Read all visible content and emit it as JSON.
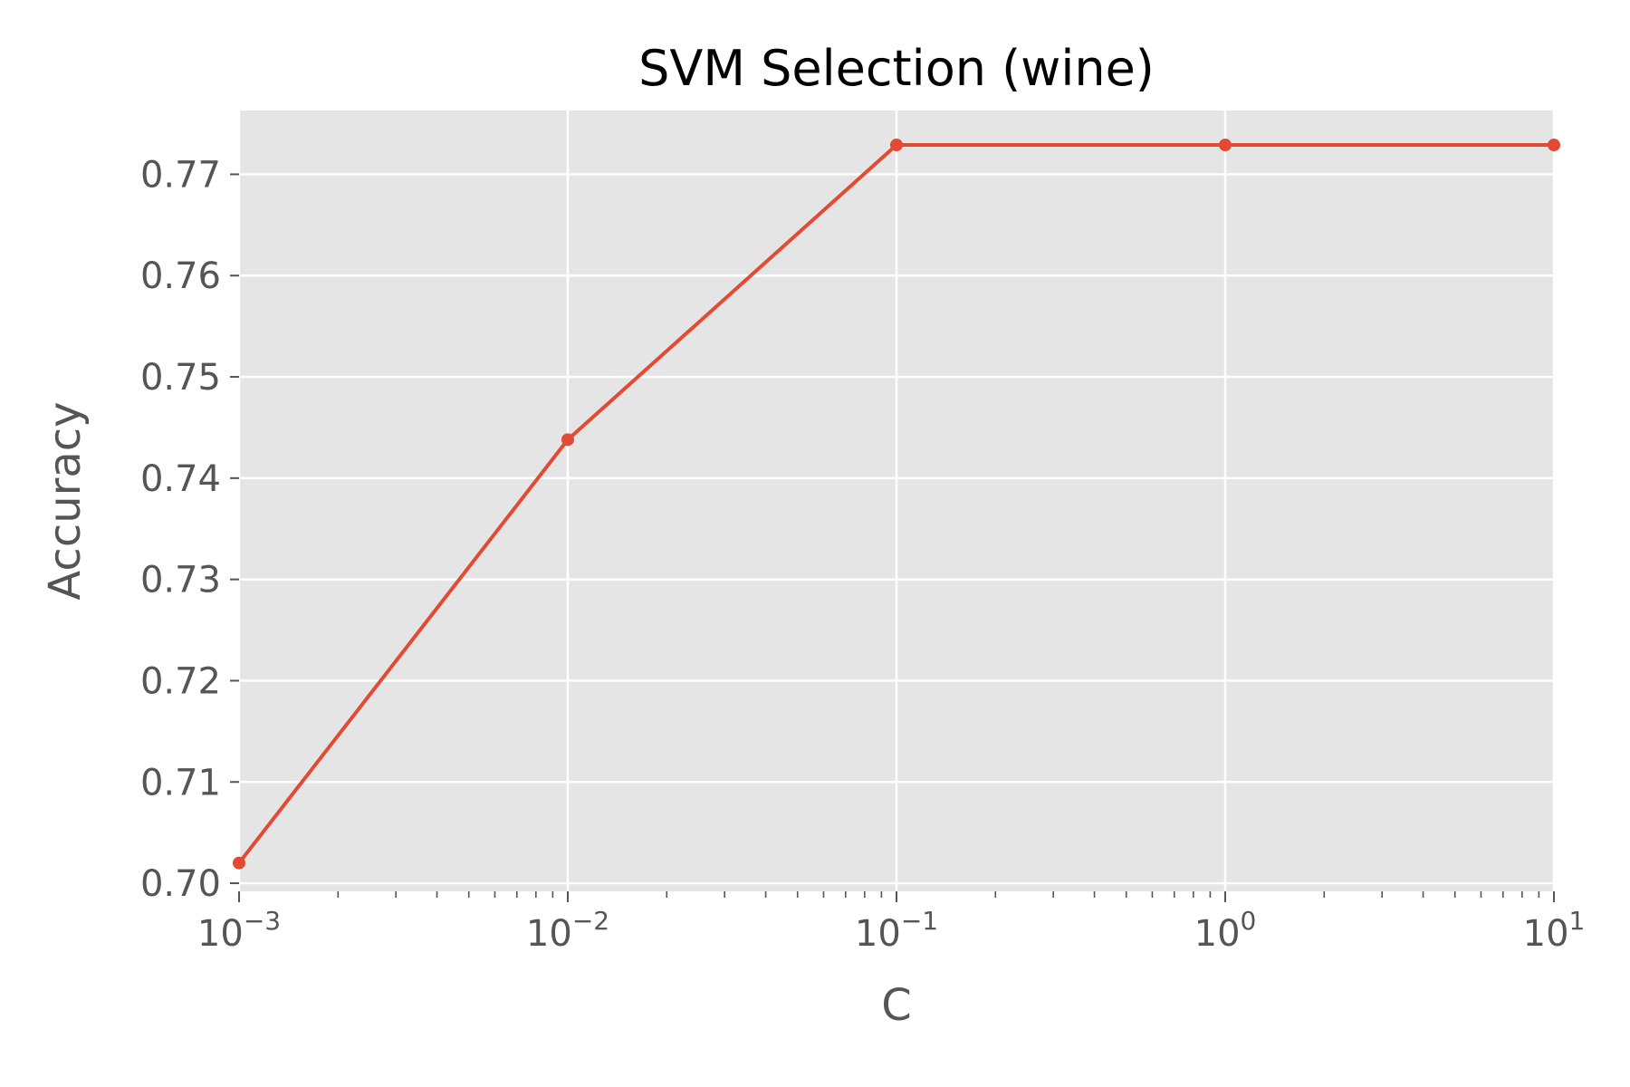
{
  "chart_data": {
    "type": "line",
    "title": "SVM Selection (wine)",
    "xlabel": "C",
    "ylabel": "Accuracy",
    "x_scale": "log",
    "xlim": [
      0.001,
      10
    ],
    "ylim": [
      0.6992,
      0.7763
    ],
    "grid": true,
    "background": "#e5e5e5",
    "grid_color": "#ffffff",
    "series": [
      {
        "color": "#e24a33",
        "x": [
          0.001,
          0.01,
          0.1,
          1,
          10
        ],
        "y": [
          0.702,
          0.7438,
          0.7729,
          0.7729,
          0.7729
        ]
      }
    ],
    "x_ticks": [
      {
        "base": "10",
        "exp": "−3",
        "value": 0.001
      },
      {
        "base": "10",
        "exp": "−2",
        "value": 0.01
      },
      {
        "base": "10",
        "exp": "−1",
        "value": 0.1
      },
      {
        "base": "10",
        "exp": "0",
        "value": 1
      },
      {
        "base": "10",
        "exp": "1",
        "value": 10
      }
    ],
    "y_ticks": [
      {
        "label": "0.70",
        "value": 0.7
      },
      {
        "label": "0.71",
        "value": 0.71
      },
      {
        "label": "0.72",
        "value": 0.72
      },
      {
        "label": "0.73",
        "value": 0.73
      },
      {
        "label": "0.74",
        "value": 0.74
      },
      {
        "label": "0.75",
        "value": 0.75
      },
      {
        "label": "0.76",
        "value": 0.76
      },
      {
        "label": "0.77",
        "value": 0.77
      }
    ]
  }
}
